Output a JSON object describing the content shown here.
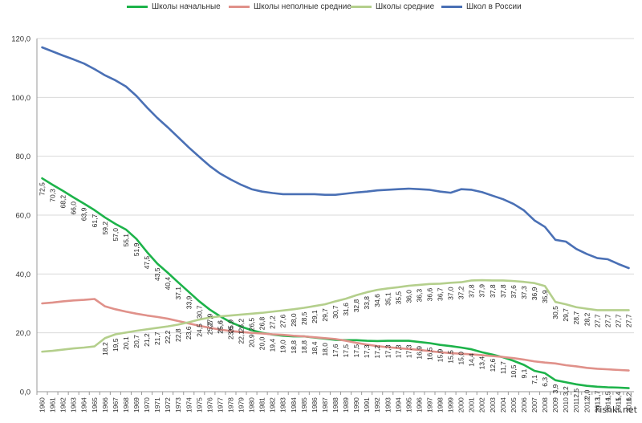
{
  "watermark": "Fishki.net",
  "chart_data": {
    "type": "line",
    "title": "",
    "xlabel": "",
    "ylabel": "",
    "ylim": [
      0,
      120
    ],
    "yticks": [
      "0,0",
      "20,0",
      "40,0",
      "60,0",
      "80,0",
      "100,0",
      "120,0"
    ],
    "grid": true,
    "legend_position": "top",
    "x": [
      1960,
      1961,
      1962,
      1963,
      1964,
      1965,
      1966,
      1967,
      1968,
      1969,
      1970,
      1971,
      1972,
      1973,
      1974,
      1975,
      1976,
      1977,
      1978,
      1979,
      1980,
      1981,
      1982,
      1983,
      1984,
      1985,
      1986,
      1987,
      1988,
      1989,
      1990,
      1991,
      1992,
      1993,
      1994,
      1995,
      1996,
      1997,
      1998,
      1999,
      2000,
      2001,
      2002,
      2003,
      2004,
      2005,
      2006,
      2007,
      2008,
      2009,
      2010,
      2011,
      2012,
      2013,
      2014,
      2015,
      2016
    ],
    "series": [
      {
        "name": "Школы начальные",
        "color": "#1db34a",
        "values": [
          72.5,
          70.3,
          68.2,
          66.0,
          63.9,
          61.7,
          59.2,
          57.0,
          55.1,
          51.9,
          47.5,
          43.5,
          40.4,
          37.1,
          33.9,
          30.7,
          27.9,
          25.6,
          23.6,
          22.1,
          20.9,
          20.0,
          19.4,
          19.0,
          18.8,
          18.8,
          18.4,
          18.0,
          17.6,
          17.5,
          17.5,
          17.3,
          17.2,
          17.3,
          17.3,
          17.3,
          16.9,
          16.5,
          15.9,
          15.5,
          15.0,
          14.4,
          13.4,
          12.6,
          11.7,
          10.5,
          9.1,
          7.1,
          6.3,
          3.9,
          3.2,
          2.5,
          2.0,
          1.7,
          1.5,
          1.4,
          1.2
        ],
        "labels": [
          "72,5",
          "70,3",
          "68,2",
          "66,0",
          "63,9",
          "61,7",
          "59,2",
          "57,0",
          "55,1",
          "51,9",
          "47,5",
          "43,5",
          "40,4",
          "37,1",
          "33,9",
          "30,7",
          "27,9",
          "25,6",
          "23,6",
          "22,1",
          "20,9",
          "20,0",
          "19,4",
          "19,0",
          "18,8",
          "18,8",
          "18,4",
          "18,0",
          "17,6",
          "17,5",
          "17,5",
          "17,3",
          "17,2",
          "17,3",
          "17,3",
          "17,3",
          "16,9",
          "16,5",
          "15,9",
          "15,5",
          "15,0",
          "14,4",
          "13,4",
          "12,6",
          "11,7",
          "10,5",
          "9,1",
          "7,1",
          "6,3",
          "3,9",
          "3,2",
          "2,5",
          "2,0",
          "1,7",
          "1,5",
          "1,4",
          "1,2"
        ],
        "label_from": 0
      },
      {
        "name": "Школы неполные средние",
        "color": "#e0918a",
        "values": [
          30.0,
          30.3,
          30.7,
          31.0,
          31.2,
          31.5,
          29.0,
          28.0,
          27.2,
          26.5,
          25.9,
          25.4,
          24.8,
          24.0,
          23.2,
          22.4,
          21.7,
          21.1,
          20.6,
          20.3,
          20.0,
          19.8,
          19.5,
          19.3,
          19.0,
          18.8,
          18.5,
          18.2,
          17.9,
          17.3,
          16.6,
          16.0,
          15.5,
          15.1,
          14.8,
          14.5,
          14.2,
          13.8,
          13.4,
          13.1,
          12.9,
          12.7,
          12.4,
          12.1,
          11.8,
          11.4,
          10.9,
          10.3,
          9.9,
          9.6,
          9.0,
          8.6,
          8.1,
          7.8,
          7.6,
          7.4,
          7.2
        ]
      },
      {
        "name": "Школы средние",
        "color": "#b4cf8c",
        "values": [
          13.6,
          13.9,
          14.3,
          14.7,
          15.0,
          15.4,
          18.2,
          19.5,
          20.1,
          20.7,
          21.2,
          21.7,
          22.2,
          22.8,
          23.6,
          24.5,
          25.2,
          25.6,
          25.9,
          26.2,
          26.5,
          26.8,
          27.2,
          27.6,
          28.0,
          28.5,
          29.1,
          29.7,
          30.7,
          31.6,
          32.8,
          33.8,
          34.6,
          35.1,
          35.5,
          36.0,
          36.3,
          36.6,
          36.7,
          37.0,
          37.2,
          37.8,
          37.9,
          37.8,
          37.8,
          37.6,
          37.3,
          36.9,
          35.9,
          30.5,
          29.7,
          28.7,
          28.2,
          27.7,
          27.7,
          27.7,
          27.7
        ],
        "labels": [
          "13,6",
          "13,9",
          "14,3",
          "14,7",
          "15,0",
          "15,4",
          "18,2",
          "19,5",
          "20,1",
          "20,7",
          "21,2",
          "21,7",
          "22,2",
          "22,8",
          "23,6",
          "24,5",
          "25,2",
          "25,6",
          "25,9",
          "26,2",
          "26,5",
          "26,8",
          "27,2",
          "27,6",
          "28,0",
          "28,5",
          "29,1",
          "29,7",
          "30,7",
          "31,6",
          "32,8",
          "33,8",
          "34,6",
          "35,1",
          "35,5",
          "36,0",
          "36,3",
          "36,6",
          "36,7",
          "37,0",
          "37,2",
          "37,8",
          "37,9",
          "37,8",
          "37,8",
          "37,6",
          "37,3",
          "36,9",
          "35,9",
          "30,5",
          "29,7",
          "28,7",
          "28,2",
          "27,7",
          "27,7",
          "27,7",
          "27,7"
        ],
        "label_from": 6
      },
      {
        "name": "Школ в России",
        "color": "#4a70b5",
        "values": [
          117.0,
          115.6,
          114.2,
          112.9,
          111.5,
          109.6,
          107.5,
          105.8,
          103.7,
          100.5,
          96.6,
          93.0,
          89.8,
          86.4,
          83.0,
          79.8,
          76.7,
          74.1,
          72.1,
          70.3,
          68.8,
          68.0,
          67.5,
          67.1,
          67.1,
          67.1,
          67.1,
          66.9,
          66.9,
          67.3,
          67.7,
          68.0,
          68.4,
          68.6,
          68.8,
          69.0,
          68.8,
          68.6,
          68.0,
          67.6,
          68.8,
          68.6,
          67.8,
          66.6,
          65.4,
          63.8,
          61.6,
          58.2,
          56.0,
          51.6,
          51.0,
          48.5,
          46.8,
          45.4,
          45.0,
          43.4,
          42.0
        ]
      }
    ]
  }
}
